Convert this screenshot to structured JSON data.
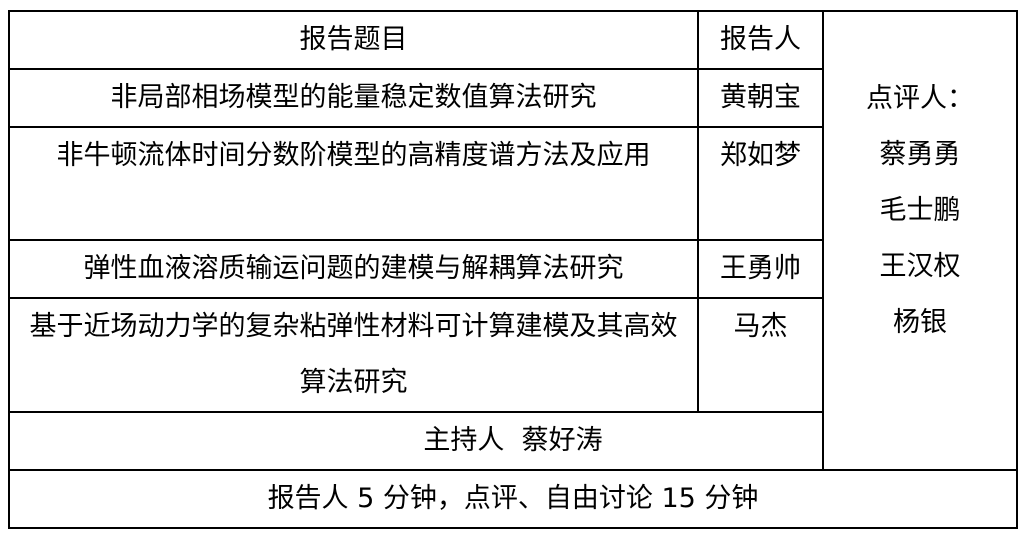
{
  "header": {
    "topic": "报告题目",
    "speaker": "报告人"
  },
  "rows": [
    {
      "topic": "非局部相场模型的能量稳定数值算法研究",
      "speaker": "黄朝宝"
    },
    {
      "topic": "非牛顿流体时间分数阶模型的高精度谱方法及应用",
      "speaker": "郑如梦"
    },
    {
      "topic": "弹性血液溶质输运问题的建模与解耦算法研究",
      "speaker": "王勇帅"
    },
    {
      "topic": "基于近场动力学的复杂粘弹性材料可计算建模及其高效算法研究",
      "speaker": "马杰"
    }
  ],
  "reviewers": {
    "label": "点评人：",
    "names": [
      "蔡勇勇",
      "毛士鹏",
      "王汉权",
      "杨银"
    ]
  },
  "host": "主持人  蔡好涛",
  "footer": "报告人 5 分钟，点评、自由讨论 15 分钟"
}
